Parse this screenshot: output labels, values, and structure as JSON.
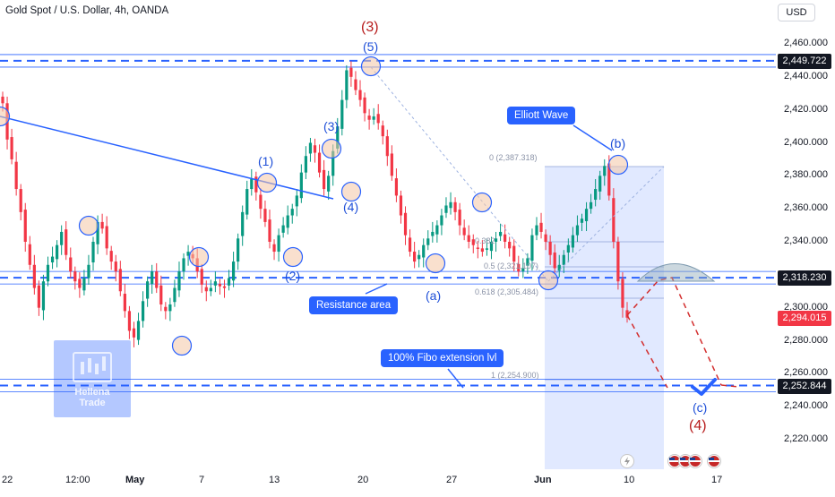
{
  "header": {
    "symbol_title": "Gold Spot / U.S. Dollar, 4h, OANDA",
    "currency": "USD"
  },
  "colors": {
    "bull": "#089981",
    "bear": "#f23645",
    "line_blue": "#2962ff",
    "wave_red": "#b71c1c",
    "target_red": "#d32f2f",
    "last_price": "#f23645",
    "level_tag": "#131722"
  },
  "annotations": {
    "wave_3_major": "(3)",
    "wave_5": "(5)",
    "wave_4_major": "(4)",
    "wave_1": "(1)",
    "wave_2": "(2)",
    "wave_3": "(3)",
    "wave_4": "(4)",
    "wave_a": "(a)",
    "wave_b": "(b)",
    "wave_c": "(c)",
    "callout_elliott": "Elliott Wave",
    "callout_resistance": "Resistance area",
    "callout_fibo": "100% Fibo extension lvl",
    "fib_0": "0 (2,387.318)",
    "fib_0382": "0.382",
    "fib_05": "0.5 (2,321.107)",
    "fib_0618": "0.618 (2,305.484)",
    "fib_1": "1 (2,254.900)",
    "watermark_name": "Hellena",
    "watermark_sub": "Trade"
  },
  "chart_data": {
    "type": "candlestick",
    "title": "Gold Spot / U.S. Dollar, 4h, OANDA",
    "y_range": [
      2210,
      2470
    ],
    "y_ticks": [
      "2,460.000",
      "2,440.000",
      "2,420.000",
      "2,400.000",
      "2,380.000",
      "2,360.000",
      "2,340.000",
      "2,300.000",
      "2,280.000",
      "2,260.000",
      "2,240.000",
      "2,220.000"
    ],
    "x_ticks": [
      "22",
      "12:00",
      "May",
      "7",
      "13",
      "20",
      "27",
      "Jun",
      "10",
      "17"
    ],
    "price_levels": [
      {
        "label": "2,449.722",
        "value": 2449.722,
        "kind": "level"
      },
      {
        "label": "2,318.230",
        "value": 2318.23,
        "kind": "level"
      },
      {
        "label": "2,294.015",
        "value": 2294.015,
        "kind": "last"
      },
      {
        "label": "2,252.844",
        "value": 2252.844,
        "kind": "level"
      }
    ],
    "closes": [
      2424,
      2402,
      2390,
      2372,
      2358,
      2340,
      2326,
      2312,
      2300,
      2316,
      2326,
      2331,
      2338,
      2346,
      2332,
      2322,
      2316,
      2312,
      2318,
      2326,
      2340,
      2352,
      2348,
      2336,
      2328,
      2322,
      2310,
      2298,
      2286,
      2282,
      2292,
      2304,
      2316,
      2322,
      2312,
      2302,
      2298,
      2302,
      2312,
      2322,
      2330,
      2334,
      2330,
      2322,
      2314,
      2310,
      2312,
      2316,
      2313,
      2312,
      2318,
      2328,
      2342,
      2358,
      2372,
      2378,
      2370,
      2360,
      2352,
      2340,
      2334,
      2344,
      2350,
      2356,
      2360,
      2368,
      2382,
      2392,
      2400,
      2394,
      2382,
      2372,
      2380,
      2395,
      2410,
      2426,
      2444,
      2440,
      2432,
      2426,
      2418,
      2414,
      2416,
      2412,
      2404,
      2392,
      2380,
      2368,
      2356,
      2344,
      2334,
      2328,
      2332,
      2338,
      2342,
      2346,
      2350,
      2356,
      2362,
      2364,
      2358,
      2350,
      2344,
      2340,
      2338,
      2336,
      2334,
      2336,
      2340,
      2342,
      2346,
      2340,
      2336,
      2328,
      2322,
      2324,
      2330,
      2344,
      2350,
      2346,
      2340,
      2332,
      2324,
      2326,
      2332,
      2338,
      2344,
      2350,
      2354,
      2360,
      2364,
      2372,
      2380,
      2386,
      2368,
      2340,
      2316,
      2300,
      2294
    ]
  }
}
